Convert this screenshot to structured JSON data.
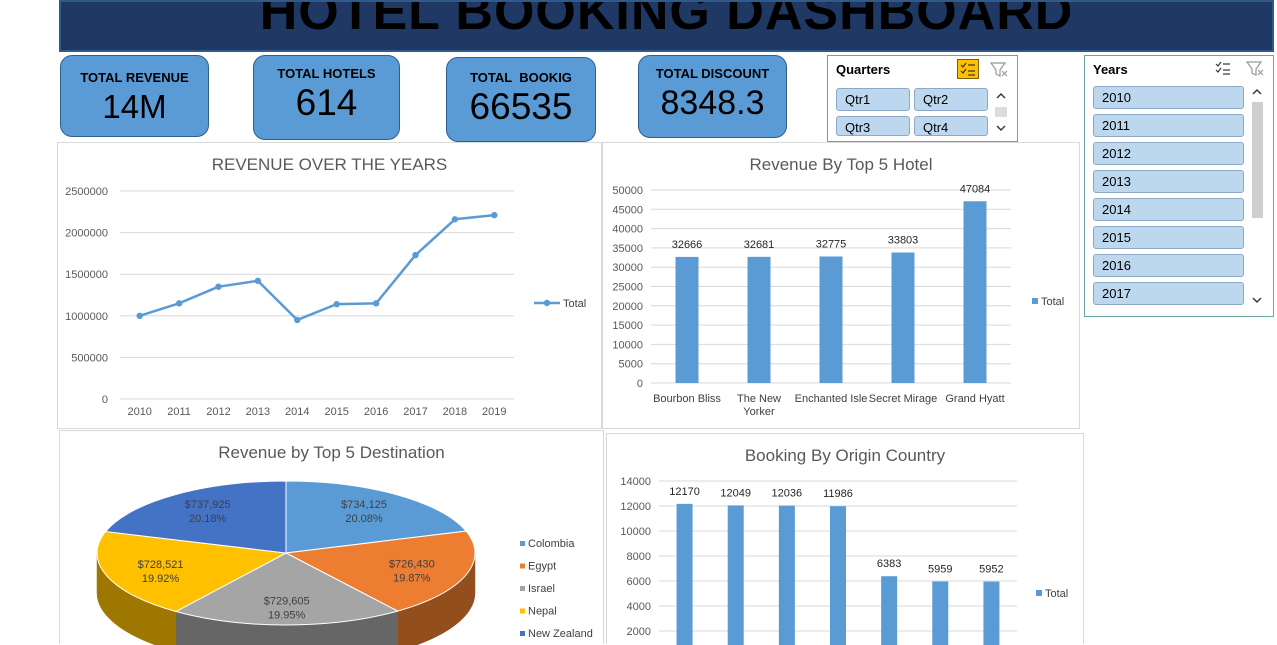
{
  "header": {
    "title": "HOTEL BOOKING DASHBOARD"
  },
  "kpis": [
    {
      "label": "TOTAL REVENUE",
      "value": "14M"
    },
    {
      "label": "TOTAL HOTELS",
      "value": "614"
    },
    {
      "label": "TOTAL  BOOKIG",
      "value": "66535"
    },
    {
      "label": "TOTAL DISCOUNT",
      "value": "8348.3"
    }
  ],
  "quarters_slicer": {
    "title": "Quarters",
    "items": [
      "Qtr1",
      "Qtr2",
      "Qtr3",
      "Qtr4"
    ]
  },
  "years_slicer": {
    "title": "Years",
    "items": [
      "2010",
      "2011",
      "2012",
      "2013",
      "2014",
      "2015",
      "2016",
      "2017"
    ]
  },
  "colors": {
    "accent": "#5b9bd5",
    "banner": "#1f3864",
    "slicer_item": "#bdd7ee"
  },
  "chart_data": [
    {
      "type": "line",
      "title": "REVENUE OVER THE YEARS",
      "categories": [
        "2010",
        "2011",
        "2012",
        "2013",
        "2014",
        "2015",
        "2016",
        "2017",
        "2018",
        "2019"
      ],
      "series": [
        {
          "name": "Total",
          "values": [
            1000000,
            1150000,
            1350000,
            1420000,
            950000,
            1140000,
            1150000,
            1730000,
            2160000,
            2210000
          ]
        }
      ],
      "ylim": [
        0,
        2500000
      ],
      "yticks": [
        "0",
        "500000",
        "1000000",
        "1500000",
        "2000000",
        "2500000"
      ],
      "legend": "right",
      "grid": true
    },
    {
      "type": "bar",
      "title": "Revenue By Top 5 Hotel",
      "categories": [
        "Bourbon Bliss",
        "The New Yorker",
        "Enchanted Isle",
        "Secret Mirage",
        "Grand Hyatt"
      ],
      "category_lines": [
        [
          "Bourbon Bliss"
        ],
        [
          "The New",
          "Yorker"
        ],
        [
          "Enchanted Isle"
        ],
        [
          "Secret Mirage"
        ],
        [
          "Grand Hyatt"
        ]
      ],
      "series": [
        {
          "name": "Total",
          "values": [
            32666,
            32681,
            32775,
            33803,
            47084
          ]
        }
      ],
      "data_labels": [
        "32666",
        "32681",
        "32775",
        "33803",
        "47084"
      ],
      "ylim": [
        0,
        50000
      ],
      "yticks": [
        "0",
        "5000",
        "10000",
        "15000",
        "20000",
        "25000",
        "30000",
        "35000",
        "40000",
        "45000",
        "50000"
      ],
      "legend": "right",
      "grid": true
    },
    {
      "type": "pie",
      "title": "Revenue by Top 5 Destination",
      "categories": [
        "Colombia",
        "Egypt",
        "Israel",
        "Nepal",
        "New Zealand"
      ],
      "values": [
        734125,
        726430,
        729605,
        728521,
        737925
      ],
      "value_labels": [
        "$734,125",
        "$726,430",
        "$729,605",
        "$728,521",
        "$737,925"
      ],
      "percent_labels": [
        "20.08%",
        "19.87%",
        "19.95%",
        "19.92%",
        "20.18%"
      ],
      "colors": [
        "#5b9bd5",
        "#ed7d31",
        "#a5a5a5",
        "#ffc000",
        "#4472c4"
      ],
      "legend": "right"
    },
    {
      "type": "bar",
      "title": "Booking By Origin Country",
      "series": [
        {
          "name": "Total",
          "values": [
            12170,
            12049,
            12036,
            11986,
            6383,
            5959,
            5952
          ]
        }
      ],
      "data_labels": [
        "12170",
        "12049",
        "12036",
        "11986",
        "6383",
        "5959",
        "5952"
      ],
      "ylim": [
        0,
        14000
      ],
      "yticks": [
        "2000",
        "4000",
        "6000",
        "8000",
        "10000",
        "12000",
        "14000"
      ],
      "legend": "right",
      "grid": true
    }
  ]
}
